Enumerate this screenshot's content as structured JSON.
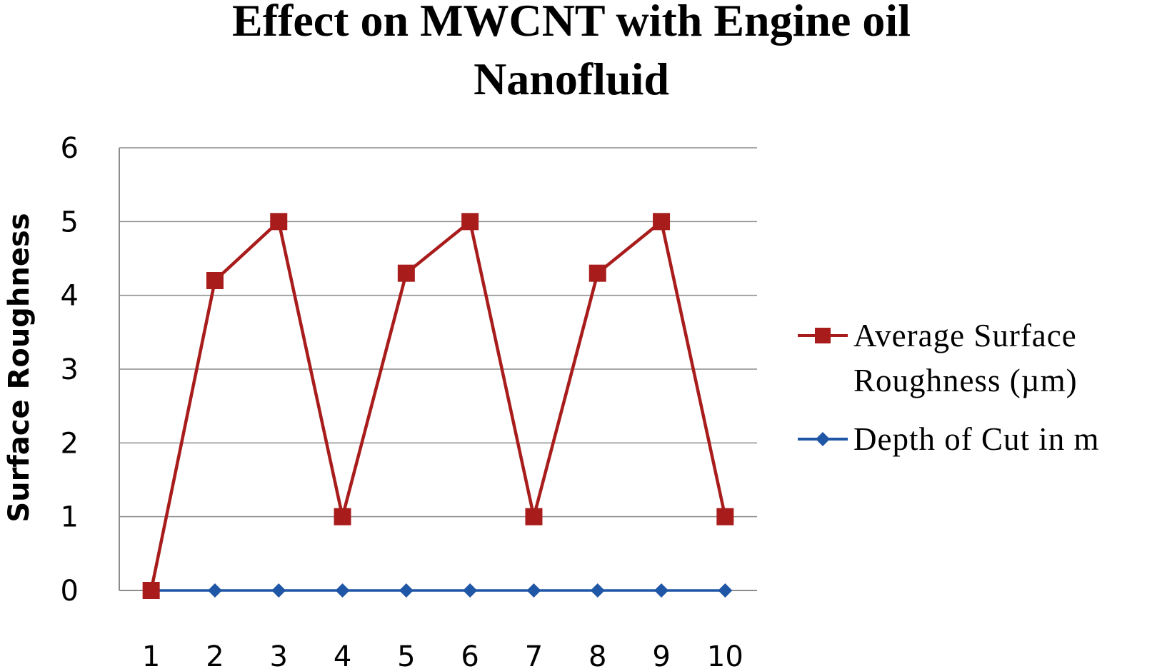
{
  "chart_data": {
    "type": "line",
    "title_line1": "Effect on MWCNT with Engine oil",
    "title_line2": "Nanofluid",
    "xlabel": "",
    "ylabel": "Surface Roughness",
    "x": [
      1,
      2,
      3,
      4,
      5,
      6,
      7,
      8,
      9,
      10
    ],
    "ylim": [
      0,
      6
    ],
    "yticks": [
      0,
      1,
      2,
      3,
      4,
      5,
      6
    ],
    "grid": true,
    "legend_position": "right",
    "series": [
      {
        "name_line1": "Average Surface",
        "name_line2": "Roughness (µm)",
        "color": "#a81c1c",
        "marker": "square",
        "values": [
          0,
          4.2,
          5,
          1,
          4.3,
          5,
          1,
          4.3,
          5,
          1
        ]
      },
      {
        "name_line1": "Depth of Cut in m",
        "name_line2": "",
        "color": "#1f56a6",
        "marker": "diamond",
        "values": [
          0,
          0,
          0,
          0,
          0,
          0,
          0,
          0,
          0,
          0
        ]
      }
    ]
  }
}
